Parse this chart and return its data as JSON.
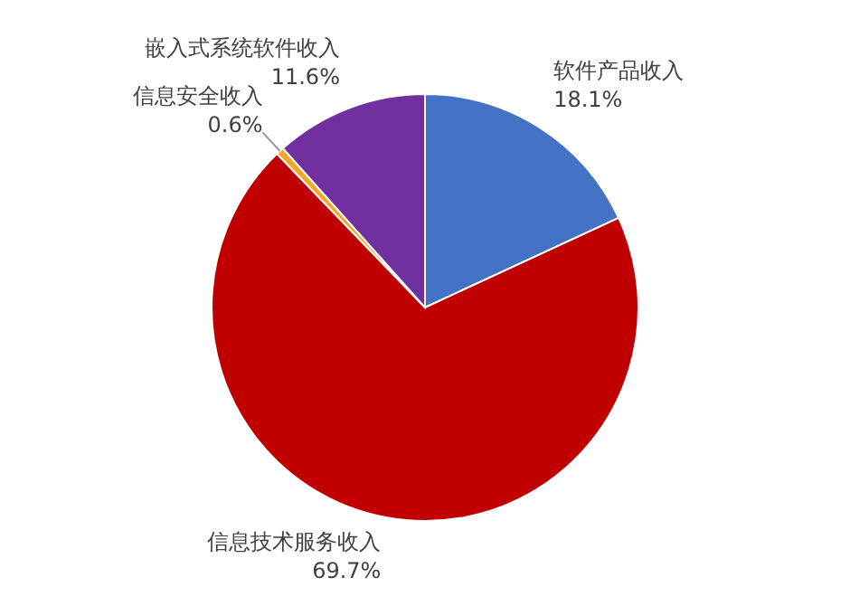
{
  "chart_data": {
    "type": "pie",
    "categories": [
      "软件产品收入",
      "信息技术服务收入",
      "信息安全收入",
      "嵌入式系统软件收入"
    ],
    "values": [
      18.1,
      69.7,
      0.6,
      11.6
    ],
    "colors": [
      "#4472c4",
      "#c00000",
      "#f5a623",
      "#7030a0"
    ],
    "value_labels": [
      "18.1%",
      "69.7%",
      "0.6%",
      "11.6%"
    ]
  }
}
